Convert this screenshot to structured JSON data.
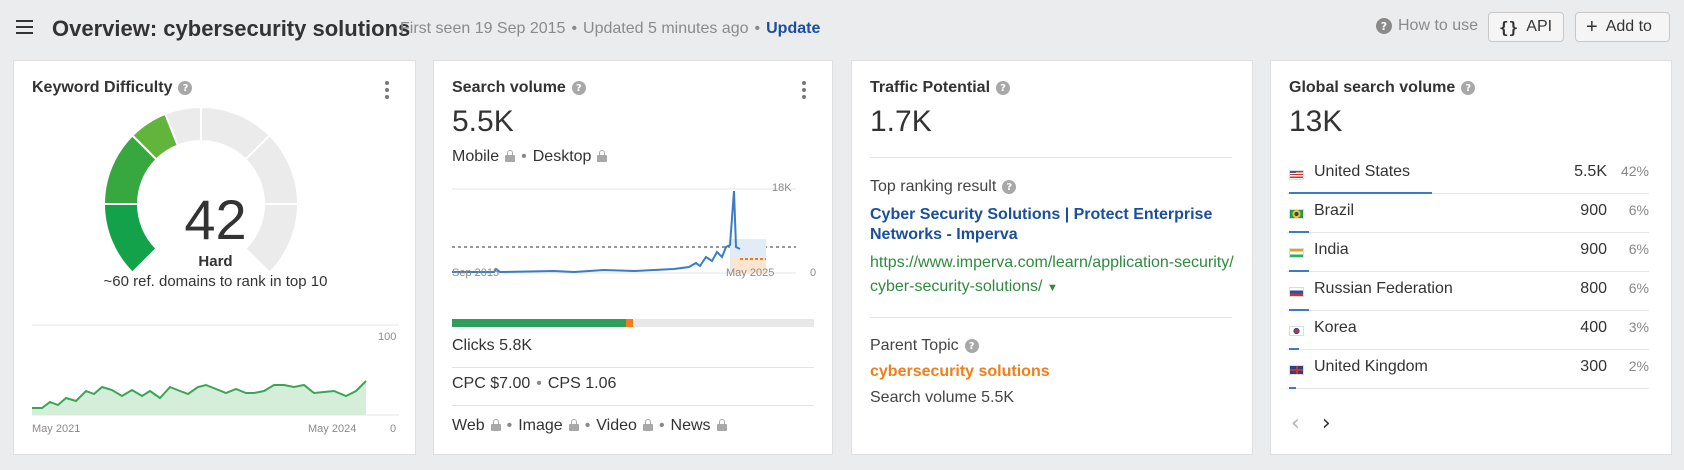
{
  "header": {
    "title": "Overview: cybersecurity solutions",
    "first_seen": "First seen 19 Sep 2015",
    "updated": "Updated 5 minutes ago",
    "update_link": "Update",
    "how_to_use": "How to use",
    "api_label": "API",
    "add_to_label": "Add to",
    "separator": "•"
  },
  "keyword_difficulty": {
    "title": "Keyword Difficulty",
    "score": "42",
    "level": "Hard",
    "description": "~60 ref. domains to rank in top 10",
    "trend_chart": {
      "x_start": "May 2021",
      "x_end": "May 2024",
      "y_max": "100",
      "y_min": "0"
    }
  },
  "search_volume": {
    "title": "Search volume",
    "value": "5.5K",
    "mobile_label": "Mobile",
    "desktop_label": "Desktop",
    "chart": {
      "x_start": "Sep 2015",
      "x_end": "May 2025",
      "y_max": "18K",
      "y_min": "0"
    },
    "clicks": "Clicks 5.8K",
    "clicks_share_pct": 48,
    "clicks_orange_pct": 2,
    "cpc": "CPC $7.00",
    "cps": "CPS 1.06",
    "serp_features": [
      "Web",
      "Image",
      "Video",
      "News"
    ]
  },
  "traffic_potential": {
    "title": "Traffic Potential",
    "value": "1.7K",
    "top_result_label": "Top ranking result",
    "top_result_title": "Cyber Security Solutions | Protect Enterprise Networks - Imperva",
    "top_result_url": "https://www.imperva.com/learn/application-security/cyber-security-solutions/",
    "parent_topic_label": "Parent Topic",
    "parent_topic": "cybersecurity solutions",
    "parent_volume": "Search volume 5.5K"
  },
  "global_volume": {
    "title": "Global search volume",
    "value": "13K",
    "countries": [
      {
        "name": "United States",
        "volume": "5.5K",
        "pct": "42%",
        "share": 42,
        "flag": "us"
      },
      {
        "name": "Brazil",
        "volume": "900",
        "pct": "6%",
        "share": 6,
        "flag": "br"
      },
      {
        "name": "India",
        "volume": "900",
        "pct": "6%",
        "share": 6,
        "flag": "in"
      },
      {
        "name": "Russian Federation",
        "volume": "800",
        "pct": "6%",
        "share": 6,
        "flag": "ru"
      },
      {
        "name": "Korea",
        "volume": "400",
        "pct": "3%",
        "share": 3,
        "flag": "kr"
      },
      {
        "name": "United Kingdom",
        "volume": "300",
        "pct": "2%",
        "share": 2,
        "flag": "gb"
      }
    ]
  },
  "colors": {
    "link_blue": "#1a4fa0",
    "url_green": "#2e8b3e",
    "orange": "#f07f1a",
    "gauge_green": "#2e9e47",
    "gauge_lime": "#b5c41c",
    "line_blue": "#3b7dc4"
  }
}
